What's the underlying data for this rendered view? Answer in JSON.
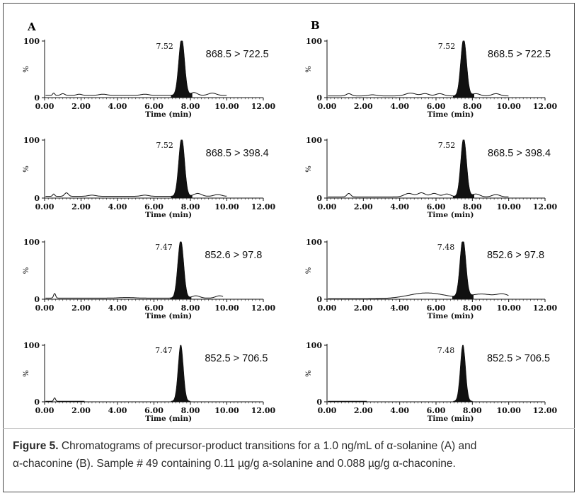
{
  "panels": [
    {
      "label": "A"
    },
    {
      "label": "B"
    }
  ],
  "chart_data": [
    {
      "type": "line",
      "panel": "A",
      "transition": "868.5 > 722.5",
      "peak_time": 7.52,
      "peak_label": "7.52",
      "xlabel": "Time (min)",
      "ylabel": "%",
      "xlim": [
        0,
        12
      ],
      "ylim": [
        0,
        100
      ],
      "xticks": [
        "0.00",
        "2.00",
        "4.00",
        "6.00",
        "8.00",
        "10.00",
        "12.00"
      ],
      "yticks": [
        "0",
        "100"
      ],
      "x_end": 10.0,
      "baseline": 4,
      "peak_width": 0.22,
      "bumps": [
        [
          0.5,
          4,
          0.08
        ],
        [
          1.0,
          3,
          0.15
        ],
        [
          1.9,
          2,
          0.2
        ],
        [
          3.2,
          2,
          0.3
        ],
        [
          5.5,
          2,
          0.3
        ],
        [
          8.2,
          5,
          0.25
        ],
        [
          9.2,
          4,
          0.3
        ]
      ]
    },
    {
      "type": "line",
      "panel": "A",
      "transition": "868.5 > 398.4",
      "peak_time": 7.52,
      "peak_label": "7.52",
      "xlabel": "Time (min)",
      "ylabel": "%",
      "xlim": [
        0,
        12
      ],
      "ylim": [
        0,
        100
      ],
      "xticks": [
        "0.00",
        "2.00",
        "4.00",
        "6.00",
        "8.00",
        "10.00",
        "12.00"
      ],
      "yticks": [
        "0",
        "100"
      ],
      "x_end": 10.0,
      "baseline": 3,
      "peak_width": 0.22,
      "bumps": [
        [
          0.5,
          4,
          0.08
        ],
        [
          1.2,
          6,
          0.15
        ],
        [
          2.6,
          2,
          0.3
        ],
        [
          5.5,
          2,
          0.3
        ],
        [
          8.4,
          5,
          0.3
        ],
        [
          9.5,
          3,
          0.3
        ]
      ]
    },
    {
      "type": "line",
      "panel": "A",
      "transition": "852.6 > 97.8",
      "peak_time": 7.47,
      "peak_label": "7.47",
      "xlabel": "Time (min)",
      "ylabel": "%",
      "xlim": [
        0,
        12
      ],
      "ylim": [
        0,
        100
      ],
      "xticks": [
        "0.00",
        "2.00",
        "4.00",
        "6.00",
        "8.00",
        "10.00",
        "12.00"
      ],
      "yticks": [
        "0",
        "100"
      ],
      "x_end": 9.8,
      "baseline": 2,
      "peak_width": 0.22,
      "bumps": [
        [
          0.55,
          8,
          0.08
        ],
        [
          4.5,
          1,
          0.6
        ],
        [
          8.3,
          4,
          0.3
        ],
        [
          9.6,
          4,
          0.3
        ]
      ]
    },
    {
      "type": "line",
      "panel": "A",
      "transition": "852.5 > 706.5",
      "peak_time": 7.47,
      "peak_label": "7.47",
      "xlabel": "Time (min)",
      "ylabel": "%",
      "xlim": [
        0,
        12
      ],
      "ylim": [
        0,
        100
      ],
      "xticks": [
        "0.00",
        "2.00",
        "4.00",
        "6.00",
        "8.00",
        "10.00",
        "12.00"
      ],
      "yticks": [
        "0",
        "100"
      ],
      "x_end": 2.2,
      "baseline": 1,
      "peak_width": 0.2,
      "bumps": [
        [
          0.55,
          6,
          0.07
        ]
      ]
    },
    {
      "type": "line",
      "panel": "B",
      "transition": "868.5 > 722.5",
      "peak_time": 7.52,
      "peak_label": "7.52",
      "xlabel": "Time (min)",
      "ylabel": "%",
      "xlim": [
        0,
        12
      ],
      "ylim": [
        0,
        100
      ],
      "xticks": [
        "0.00",
        "2.00",
        "4.00",
        "6.00",
        "8.00",
        "10.00",
        "12.00"
      ],
      "yticks": [
        "0",
        "100"
      ],
      "x_end": 10.0,
      "baseline": 3,
      "peak_width": 0.22,
      "bumps": [
        [
          1.2,
          4,
          0.2
        ],
        [
          2.5,
          2,
          0.3
        ],
        [
          4.6,
          5,
          0.4
        ],
        [
          5.4,
          4,
          0.3
        ],
        [
          6.2,
          4,
          0.3
        ],
        [
          8.2,
          4,
          0.3
        ],
        [
          9.3,
          4,
          0.3
        ]
      ]
    },
    {
      "type": "line",
      "panel": "B",
      "transition": "868.5 > 398.4",
      "peak_time": 7.52,
      "peak_label": "7.52",
      "xlabel": "Time (min)",
      "ylabel": "%",
      "xlim": [
        0,
        12
      ],
      "ylim": [
        0,
        100
      ],
      "xticks": [
        "0.00",
        "2.00",
        "4.00",
        "6.00",
        "8.00",
        "10.00",
        "12.00"
      ],
      "yticks": [
        "0",
        "100"
      ],
      "x_end": 10.0,
      "baseline": 2,
      "peak_width": 0.22,
      "bumps": [
        [
          1.2,
          6,
          0.15
        ],
        [
          4.5,
          6,
          0.35
        ],
        [
          5.2,
          7,
          0.3
        ],
        [
          5.9,
          6,
          0.3
        ],
        [
          6.6,
          5,
          0.3
        ],
        [
          8.2,
          5,
          0.3
        ],
        [
          9.3,
          4,
          0.3
        ]
      ]
    },
    {
      "type": "line",
      "panel": "B",
      "transition": "852.6 > 97.8",
      "peak_time": 7.48,
      "peak_label": "7.48",
      "xlabel": "Time (min)",
      "ylabel": "%",
      "xlim": [
        0,
        12
      ],
      "ylim": [
        0,
        100
      ],
      "xticks": [
        "0.00",
        "2.00",
        "4.00",
        "6.00",
        "8.00",
        "10.00",
        "12.00"
      ],
      "yticks": [
        "0",
        "100"
      ],
      "x_end": 10.0,
      "baseline": 1,
      "peak_width": 0.22,
      "bumps": [
        [
          5.5,
          10,
          1.4
        ],
        [
          8.5,
          8,
          0.9
        ],
        [
          9.7,
          7,
          0.5
        ]
      ]
    },
    {
      "type": "line",
      "panel": "B",
      "transition": "852.5 > 706.5",
      "peak_time": 7.48,
      "peak_label": "7.48",
      "xlabel": "Time (min)",
      "ylabel": "%",
      "xlim": [
        0,
        12
      ],
      "ylim": [
        0,
        100
      ],
      "xticks": [
        "0.00",
        "2.00",
        "4.00",
        "6.00",
        "8.00",
        "10.00",
        "12.00"
      ],
      "yticks": [
        "0",
        "100"
      ],
      "x_end": 2.2,
      "baseline": 1,
      "peak_width": 0.2,
      "bumps": []
    }
  ],
  "caption": {
    "lead": "Figure 5.",
    "line1": " Chromatograms of precursor-product transitions for a 1.0 ng/mL of α-solanine (A) and",
    "line2": "α-chaconine (B). Sample # 49 containing 0.11 µg/g a-solanine and 0.088 µg/g α-chaconine."
  }
}
